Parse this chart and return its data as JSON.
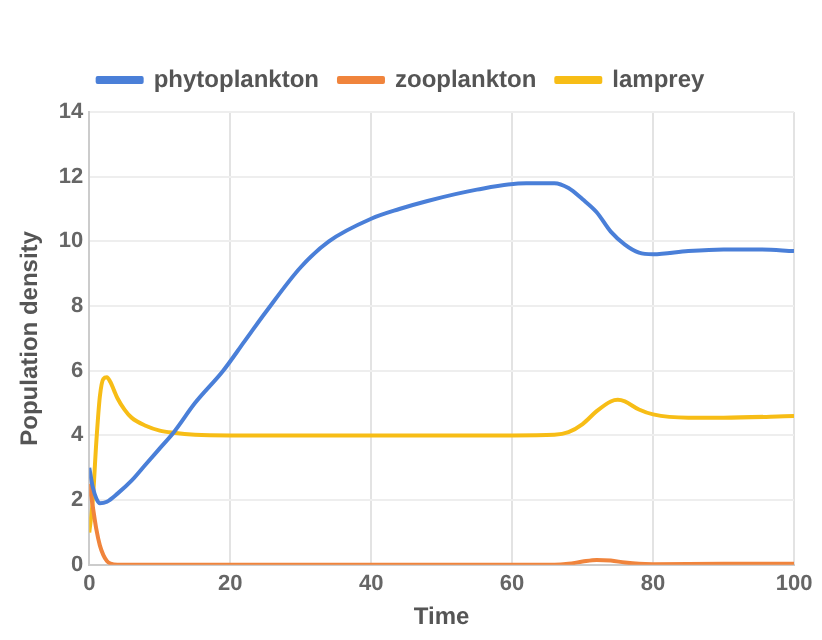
{
  "chart_data": {
    "type": "line",
    "xlabel": "Time",
    "ylabel": "Population density",
    "xlim": [
      0,
      100
    ],
    "xticks": [
      0,
      20,
      40,
      60,
      80,
      100
    ],
    "ylim": [
      0,
      14
    ],
    "yticks": [
      0,
      2,
      4,
      6,
      8,
      10,
      12,
      14
    ],
    "grid": true,
    "legend": "top",
    "marker": "none",
    "series": [
      {
        "name": "phytoplankton",
        "color": "#4a7fd8",
        "x": [
          0,
          0.5,
          1,
          1.5,
          2.5,
          4,
          6,
          8,
          10,
          12,
          15,
          19,
          22,
          25,
          30,
          34,
          40,
          44,
          48,
          55,
          62,
          66,
          68,
          70,
          72,
          74,
          76,
          78,
          80,
          85,
          90,
          95,
          100
        ],
        "values": [
          3,
          2.4,
          2.05,
          1.9,
          1.95,
          2.2,
          2.6,
          3.1,
          3.6,
          4.1,
          5,
          6,
          6.9,
          7.8,
          9.2,
          10,
          10.7,
          11,
          11.25,
          11.6,
          11.8,
          11.8,
          11.65,
          11.3,
          10.9,
          10.3,
          9.9,
          9.65,
          9.6,
          9.7,
          9.75,
          9.75,
          9.7
        ]
      },
      {
        "name": "zooplankton",
        "color": "#f0843c",
        "x": [
          0,
          0.5,
          1,
          1.5,
          2,
          2.5,
          3,
          4,
          10,
          30,
          50,
          60,
          66,
          68,
          70,
          72,
          74,
          76,
          78,
          80,
          90,
          100
        ],
        "values": [
          2.5,
          1.8,
          1.1,
          0.6,
          0.3,
          0.12,
          0.04,
          0,
          0,
          0,
          0,
          0,
          0,
          0.03,
          0.1,
          0.15,
          0.13,
          0.07,
          0.03,
          0.02,
          0.03,
          0.03
        ]
      },
      {
        "name": "lamprey",
        "color": "#f7bd16",
        "x": [
          0,
          0.5,
          1,
          1.5,
          2,
          2.5,
          3,
          3.5,
          4,
          5,
          6,
          8,
          10,
          12,
          15,
          20,
          40,
          60,
          66,
          68,
          70,
          72,
          74,
          75,
          76,
          78,
          80,
          85,
          90,
          100
        ],
        "values": [
          1,
          2,
          3.8,
          5.2,
          5.75,
          5.8,
          5.65,
          5.4,
          5.15,
          4.8,
          4.55,
          4.3,
          4.15,
          4.08,
          4.02,
          4,
          4,
          4,
          4.02,
          4.1,
          4.35,
          4.75,
          5.05,
          5.1,
          5.05,
          4.8,
          4.65,
          4.55,
          4.55,
          4.6
        ]
      }
    ]
  }
}
